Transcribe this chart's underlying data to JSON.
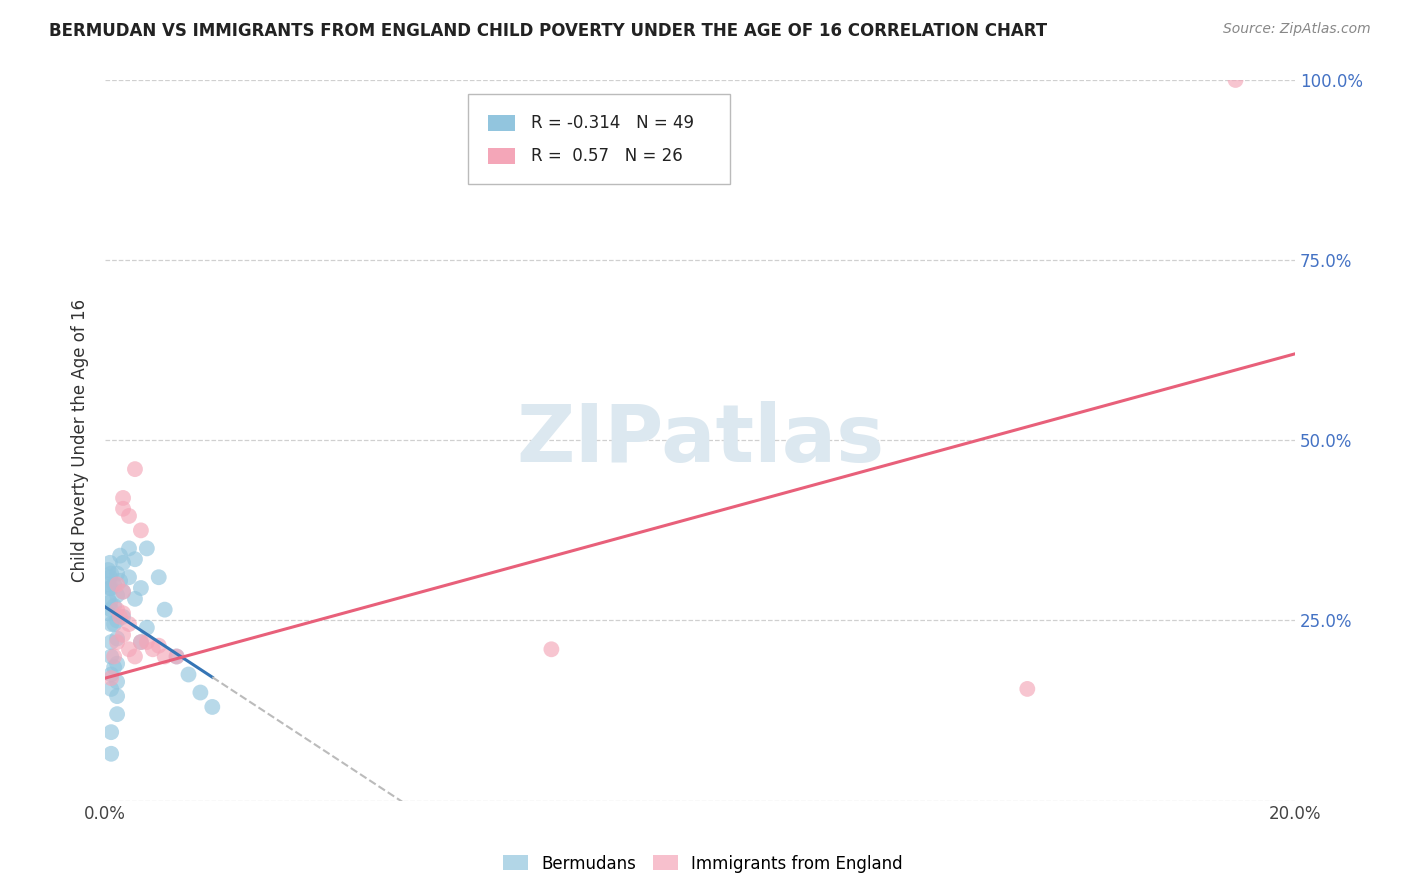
{
  "title": "BERMUDAN VS IMMIGRANTS FROM ENGLAND CHILD POVERTY UNDER THE AGE OF 16 CORRELATION CHART",
  "source": "Source: ZipAtlas.com",
  "ylabel": "Child Poverty Under the Age of 16",
  "legend_label1": "Bermudans",
  "legend_label2": "Immigrants from England",
  "R1": -0.314,
  "N1": 49,
  "R2": 0.57,
  "N2": 26,
  "blue_color": "#92c5de",
  "pink_color": "#f4a6b8",
  "blue_line_color": "#3575b5",
  "pink_line_color": "#e8607a",
  "blue_scatter": [
    [
      0.0005,
      0.32
    ],
    [
      0.0005,
      0.3
    ],
    [
      0.0005,
      0.28
    ],
    [
      0.0005,
      0.26
    ],
    [
      0.0008,
      0.33
    ],
    [
      0.0008,
      0.31
    ],
    [
      0.0008,
      0.295
    ],
    [
      0.0008,
      0.275
    ],
    [
      0.001,
      0.315
    ],
    [
      0.001,
      0.295
    ],
    [
      0.001,
      0.265
    ],
    [
      0.001,
      0.245
    ],
    [
      0.001,
      0.22
    ],
    [
      0.001,
      0.2
    ],
    [
      0.001,
      0.175
    ],
    [
      0.001,
      0.155
    ],
    [
      0.0015,
      0.3
    ],
    [
      0.0015,
      0.27
    ],
    [
      0.0015,
      0.245
    ],
    [
      0.0015,
      0.185
    ],
    [
      0.002,
      0.315
    ],
    [
      0.002,
      0.285
    ],
    [
      0.002,
      0.25
    ],
    [
      0.002,
      0.225
    ],
    [
      0.002,
      0.19
    ],
    [
      0.002,
      0.165
    ],
    [
      0.002,
      0.145
    ],
    [
      0.002,
      0.12
    ],
    [
      0.0025,
      0.34
    ],
    [
      0.0025,
      0.305
    ],
    [
      0.003,
      0.33
    ],
    [
      0.003,
      0.29
    ],
    [
      0.003,
      0.255
    ],
    [
      0.004,
      0.35
    ],
    [
      0.004,
      0.31
    ],
    [
      0.005,
      0.335
    ],
    [
      0.005,
      0.28
    ],
    [
      0.006,
      0.295
    ],
    [
      0.006,
      0.22
    ],
    [
      0.007,
      0.35
    ],
    [
      0.007,
      0.24
    ],
    [
      0.009,
      0.31
    ],
    [
      0.01,
      0.265
    ],
    [
      0.012,
      0.2
    ],
    [
      0.014,
      0.175
    ],
    [
      0.016,
      0.15
    ],
    [
      0.018,
      0.13
    ],
    [
      0.001,
      0.095
    ],
    [
      0.001,
      0.065
    ]
  ],
  "pink_scatter": [
    [
      0.001,
      0.17
    ],
    [
      0.0015,
      0.2
    ],
    [
      0.002,
      0.22
    ],
    [
      0.002,
      0.265
    ],
    [
      0.002,
      0.3
    ],
    [
      0.0025,
      0.255
    ],
    [
      0.003,
      0.23
    ],
    [
      0.003,
      0.26
    ],
    [
      0.003,
      0.29
    ],
    [
      0.003,
      0.42
    ],
    [
      0.003,
      0.405
    ],
    [
      0.004,
      0.395
    ],
    [
      0.004,
      0.245
    ],
    [
      0.004,
      0.21
    ],
    [
      0.005,
      0.46
    ],
    [
      0.005,
      0.2
    ],
    [
      0.006,
      0.375
    ],
    [
      0.006,
      0.22
    ],
    [
      0.007,
      0.22
    ],
    [
      0.008,
      0.21
    ],
    [
      0.009,
      0.215
    ],
    [
      0.01,
      0.2
    ],
    [
      0.012,
      0.2
    ],
    [
      0.075,
      0.21
    ],
    [
      0.155,
      0.155
    ],
    [
      0.19,
      1.0
    ]
  ],
  "xlim": [
    0,
    0.2
  ],
  "ylim": [
    0,
    1.0
  ],
  "xticks": [
    0,
    0.05,
    0.1,
    0.15,
    0.2
  ],
  "xtick_labels": [
    "0.0%",
    "",
    "",
    "",
    "20.0%"
  ],
  "yticks": [
    0.0,
    0.25,
    0.5,
    0.75,
    1.0
  ],
  "ytick_right_labels": [
    "",
    "25.0%",
    "50.0%",
    "75.0%",
    "100.0%"
  ],
  "background_color": "#ffffff",
  "grid_color": "#d0d0d0",
  "watermark": "ZIPatlas",
  "watermark_color": "#dce8f0"
}
